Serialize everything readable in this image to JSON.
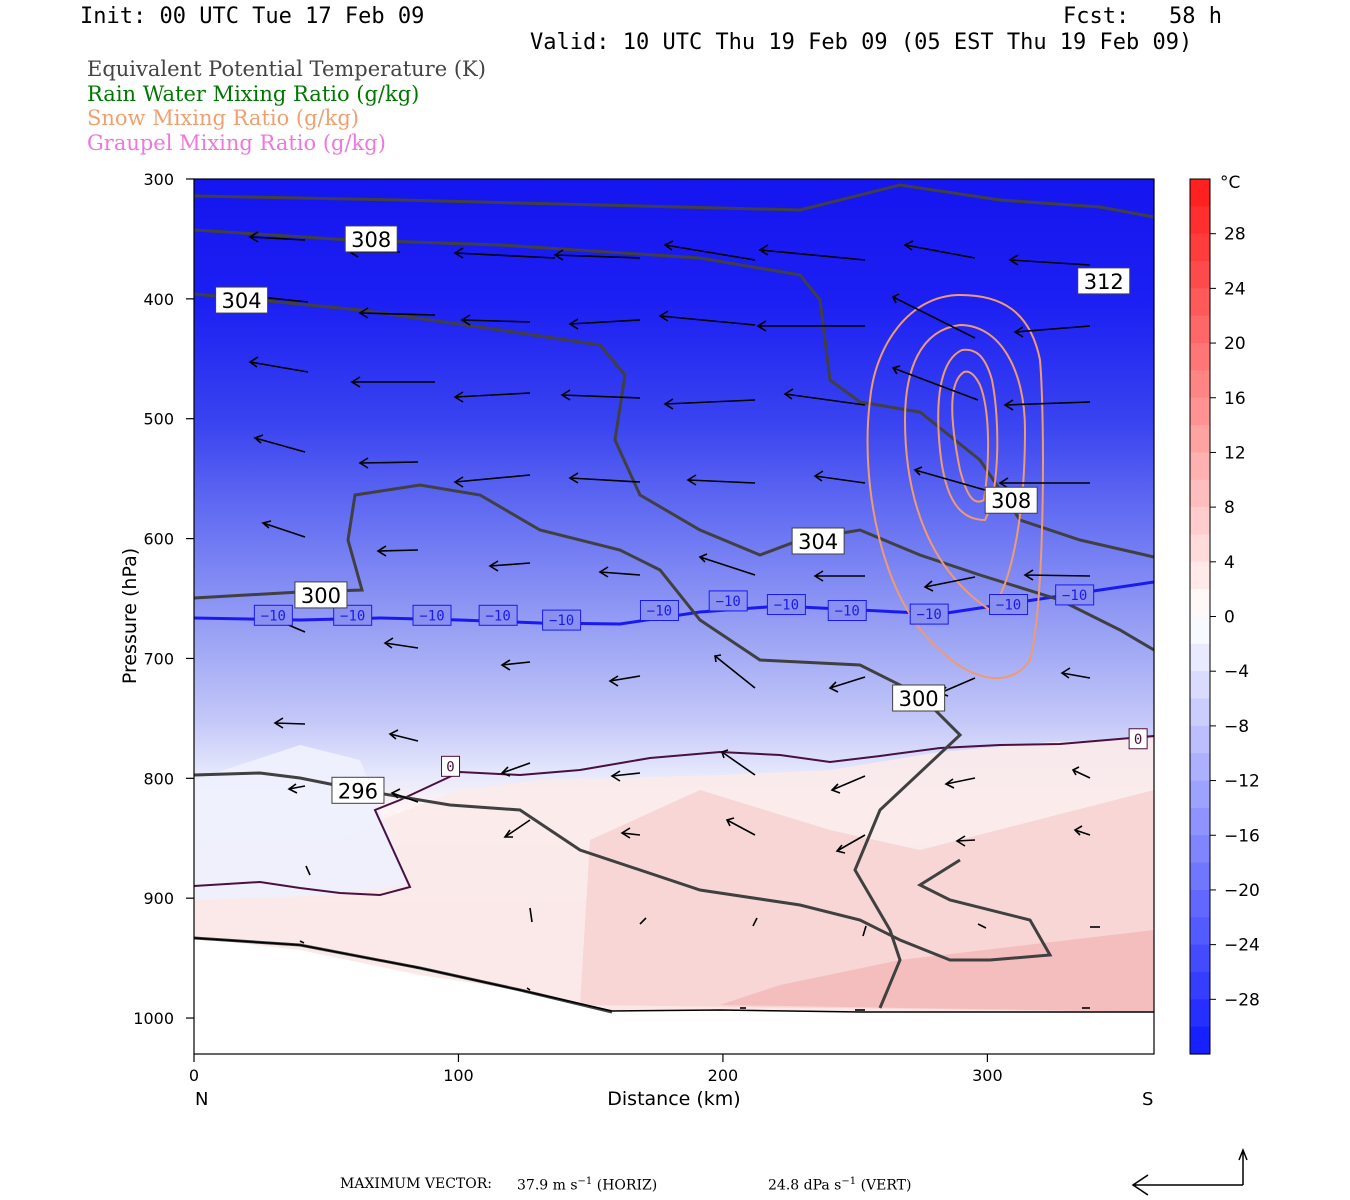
{
  "header": {
    "init": "Init: 00 UTC Tue 17 Feb 09",
    "fcst": "Fcst:   58 h",
    "valid": "Valid: 10 UTC Thu 19 Feb 09 (05 EST Thu 19 Feb 09)"
  },
  "legend": [
    {
      "text": "Equivalent Potential Temperature (K)",
      "color": "#444444"
    },
    {
      "text": "Rain Water Mixing Ratio (g/kg)",
      "color": "#007700"
    },
    {
      "text": "Snow Mixing Ratio (g/kg)",
      "color": "#f0a070"
    },
    {
      "text": "Graupel Mixing Ratio (g/kg)",
      "color": "#ee77dd"
    }
  ],
  "chart_data": {
    "type": "cross-section",
    "xlabel": "Distance (km)",
    "ylabel": "Pressure (hPa)",
    "xlim": [
      0,
      363
    ],
    "ylim": [
      1030,
      300
    ],
    "x_ticks": [
      0,
      100,
      200,
      300
    ],
    "y_ticks": [
      300,
      400,
      500,
      600,
      700,
      800,
      900,
      1000
    ],
    "endpoint_labels": {
      "left": "N",
      "right": "S"
    },
    "colorbar": {
      "unit": "°C",
      "tick_labels": [
        "28",
        "24",
        "20",
        "16",
        "12",
        "8",
        "4",
        "0",
        "−4",
        "−8",
        "−12",
        "−16",
        "−20",
        "−24",
        "−28"
      ],
      "tick_values": [
        28,
        24,
        20,
        16,
        12,
        8,
        4,
        0,
        -4,
        -8,
        -12,
        -16,
        -20,
        -24,
        -28
      ],
      "range": [
        -32,
        32
      ]
    },
    "temperature_isotherm_labels": [
      {
        "text": "−10",
        "x": 30,
        "p": 664
      },
      {
        "text": "−10",
        "x": 60,
        "p": 664
      },
      {
        "text": "−10",
        "x": 90,
        "p": 664
      },
      {
        "text": "−10",
        "x": 115,
        "p": 664
      },
      {
        "text": "−10",
        "x": 139,
        "p": 668
      },
      {
        "text": "−10",
        "x": 176,
        "p": 660
      },
      {
        "text": "−10",
        "x": 202,
        "p": 652
      },
      {
        "text": "−10",
        "x": 224,
        "p": 655
      },
      {
        "text": "−10",
        "x": 247,
        "p": 660
      },
      {
        "text": "−10",
        "x": 278,
        "p": 663
      },
      {
        "text": "−10",
        "x": 308,
        "p": 655
      },
      {
        "text": "−10",
        "x": 333,
        "p": 647
      },
      {
        "text": "0",
        "x": 97,
        "p": 790
      },
      {
        "text": "0",
        "x": 357,
        "p": 767
      }
    ],
    "theta_e_labels": [
      {
        "text": "308",
        "x": 67,
        "p": 350
      },
      {
        "text": "304",
        "x": 18,
        "p": 401
      },
      {
        "text": "312",
        "x": 344,
        "p": 385
      },
      {
        "text": "308",
        "x": 309,
        "p": 568
      },
      {
        "text": "304",
        "x": 236,
        "p": 602
      },
      {
        "text": "300",
        "x": 48,
        "p": 647
      },
      {
        "text": "300",
        "x": 274,
        "p": 733
      },
      {
        "text": "296",
        "x": 62,
        "p": 810
      }
    ],
    "snow_max_location": {
      "x": 290,
      "p": 500
    }
  },
  "footer": {
    "label": "MAXIMUM VECTOR:",
    "horiz_value": "37.9 m s",
    "horiz_exp": "−1",
    "horiz_tag": "(HORIZ)",
    "vert_value": "24.8 dPa s",
    "vert_exp": "−1",
    "vert_tag": "(VERT)"
  }
}
